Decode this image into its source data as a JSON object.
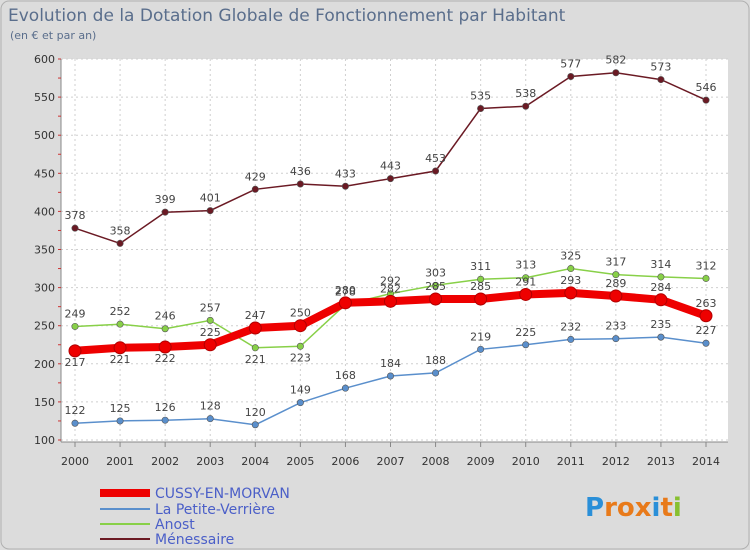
{
  "chart_data": {
    "type": "line",
    "title": "Evolution de la Dotation Globale de Fonctionnement par Habitant",
    "subtitle": "(en € et par an)",
    "xlabel": "",
    "ylabel": "",
    "ylim": [
      100,
      600
    ],
    "yticks": [
      100,
      150,
      200,
      250,
      300,
      350,
      400,
      450,
      500,
      550,
      600
    ],
    "x": [
      "2000",
      "2001",
      "2002",
      "2003",
      "2004",
      "2005",
      "2006",
      "2007",
      "2008",
      "2009",
      "2010",
      "2011",
      "2012",
      "2013",
      "2014"
    ],
    "grid": true,
    "legend_position": "bottom-left",
    "series": [
      {
        "name": "Ménessaire",
        "color": "#6b1a24",
        "values": [
          378,
          358,
          399,
          401,
          429,
          436,
          433,
          443,
          453,
          535,
          538,
          577,
          582,
          573,
          546
        ]
      },
      {
        "name": "Anost",
        "color": "#88d048",
        "values": [
          249,
          252,
          246,
          257,
          221,
          223,
          278,
          292,
          303,
          311,
          313,
          325,
          317,
          314,
          312
        ]
      },
      {
        "name": "La Petite-Verrière",
        "color": "#5a8fcc",
        "values": [
          122,
          125,
          126,
          128,
          120,
          149,
          168,
          184,
          188,
          219,
          225,
          232,
          233,
          235,
          227
        ]
      },
      {
        "name": "CUSSY-EN-MORVAN",
        "color": "#ee0000",
        "values": [
          217,
          221,
          222,
          225,
          247,
          250,
          280,
          282,
          285,
          285,
          291,
          293,
          289,
          284,
          263
        ]
      }
    ],
    "legend_order": [
      "CUSSY-EN-MORVAN",
      "La Petite-Verrière",
      "Anost",
      "Ménessaire"
    ]
  },
  "brand": {
    "logo_text": "Proxiti",
    "letters": [
      "P",
      "r",
      "o",
      "x",
      "i",
      "t",
      "i"
    ],
    "colors": [
      "#2a8fd8",
      "#e87a1a",
      "#e87a1a",
      "#e87a1a",
      "#2a8fd8",
      "#e87a1a",
      "#88c030"
    ]
  }
}
